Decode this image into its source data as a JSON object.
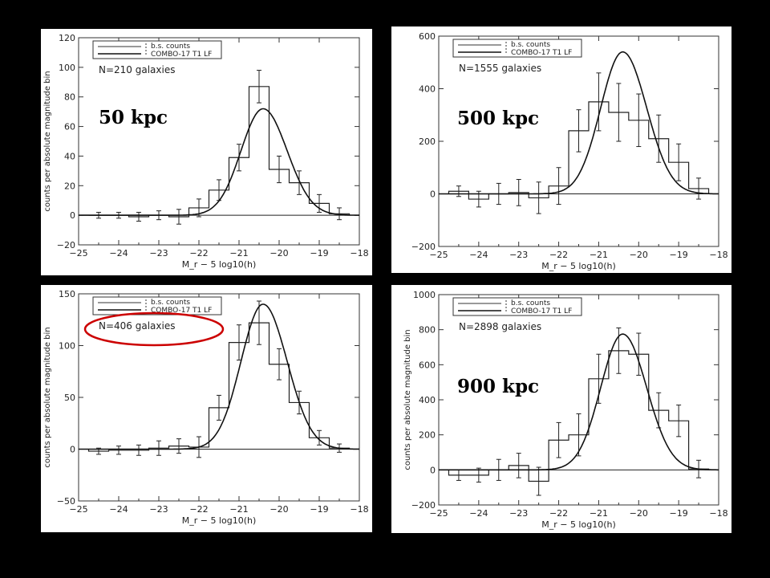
{
  "chart_data": [
    {
      "type": "line",
      "panel_label": "50 kpc",
      "count_label": "N=210 galaxies",
      "legend": [
        "b.s. counts",
        "COMBO-17 T1 LF"
      ],
      "xlabel": "M_r − 5 log10(h)",
      "ylabel": "counts per absolute magnitude bin",
      "xlim": [
        -25,
        -18
      ],
      "ylim": [
        -20,
        120
      ],
      "xticks": [
        -25,
        -24,
        -23,
        -22,
        -21,
        -20,
        -19,
        -18
      ],
      "yticks": [
        -20,
        0,
        20,
        40,
        60,
        80,
        100,
        120
      ],
      "highlight": false,
      "series": [
        {
          "name": "b.s. counts",
          "bin_edges": [
            -24.75,
            -24.25,
            -23.75,
            -23.25,
            -22.75,
            -22.25,
            -21.75,
            -21.25,
            -20.75,
            -20.25,
            -19.75,
            -19.25,
            -18.75,
            -18.25
          ],
          "values": [
            0,
            0,
            -1,
            0,
            -1,
            5,
            17,
            39,
            87,
            31,
            22,
            8,
            1
          ],
          "errors": [
            2,
            2,
            3,
            3,
            5,
            6,
            7,
            9,
            11,
            9,
            8,
            6,
            4
          ]
        },
        {
          "name": "COMBO-17 T1 LF",
          "peak_x": -20.4,
          "peak_y": 72,
          "sigma_bright": 0.55,
          "sigma_faint": 0.6
        }
      ]
    },
    {
      "type": "line",
      "panel_label": "500 kpc",
      "count_label": "N=1555 galaxies",
      "legend": [
        "b.s. counts",
        "COMBO-17 T1 LF"
      ],
      "xlabel": "M_r − 5 log10(h)",
      "ylabel": "",
      "xlim": [
        -25,
        -18
      ],
      "ylim": [
        -200,
        600
      ],
      "xticks": [
        -25,
        -24,
        -23,
        -22,
        -21,
        -20,
        -19,
        -18
      ],
      "yticks": [
        -200,
        0,
        200,
        400,
        600
      ],
      "highlight": false,
      "series": [
        {
          "name": "b.s. counts",
          "bin_edges": [
            -24.75,
            -24.25,
            -23.75,
            -23.25,
            -22.75,
            -22.25,
            -21.75,
            -21.25,
            -20.75,
            -20.25,
            -19.75,
            -19.25,
            -18.75,
            -18.25
          ],
          "values": [
            10,
            -20,
            0,
            5,
            -15,
            30,
            240,
            350,
            310,
            280,
            210,
            120,
            20
          ],
          "errors": [
            20,
            30,
            40,
            50,
            60,
            70,
            80,
            110,
            110,
            100,
            90,
            70,
            40
          ]
        },
        {
          "name": "COMBO-17 T1 LF",
          "peak_x": -20.4,
          "peak_y": 540,
          "sigma_bright": 0.55,
          "sigma_faint": 0.6
        }
      ]
    },
    {
      "type": "line",
      "panel_label": "",
      "count_label": "N=406 galaxies",
      "legend": [
        "b.s. counts",
        "COMBO-17 T1 LF"
      ],
      "xlabel": "M_r − 5 log10(h)",
      "ylabel": "counts per absolute magnitude bin",
      "xlim": [
        -25,
        -18
      ],
      "ylim": [
        -50,
        150
      ],
      "xticks": [
        -25,
        -24,
        -23,
        -22,
        -21,
        -20,
        -19,
        -18
      ],
      "yticks": [
        -50,
        0,
        50,
        100,
        150
      ],
      "highlight": true,
      "highlight_color": "#cc0000",
      "series": [
        {
          "name": "b.s. counts",
          "bin_edges": [
            -24.75,
            -24.25,
            -23.75,
            -23.25,
            -22.75,
            -22.25,
            -21.75,
            -21.25,
            -20.75,
            -20.25,
            -19.75,
            -19.25,
            -18.75,
            -18.25
          ],
          "values": [
            -2,
            -1,
            -1,
            1,
            3,
            2,
            40,
            103,
            122,
            82,
            45,
            11,
            1
          ],
          "errors": [
            3,
            4,
            5,
            7,
            7,
            10,
            12,
            17,
            21,
            15,
            11,
            7,
            4
          ]
        },
        {
          "name": "COMBO-17 T1 LF",
          "peak_x": -20.4,
          "peak_y": 140,
          "sigma_bright": 0.55,
          "sigma_faint": 0.6
        }
      ]
    },
    {
      "type": "line",
      "panel_label": "900 kpc",
      "count_label": "N=2898 galaxies",
      "legend": [
        "b.s. counts",
        "COMBO-17 T1 LF"
      ],
      "xlabel": "M_r − 5 log10(h)",
      "ylabel": "counts per absolute magnitude bin",
      "xlim": [
        -25,
        -18
      ],
      "ylim": [
        -200,
        1000
      ],
      "xticks": [
        -25,
        -24,
        -23,
        -22,
        -21,
        -20,
        -19,
        -18
      ],
      "yticks": [
        -200,
        0,
        200,
        400,
        600,
        800,
        1000
      ],
      "highlight": false,
      "series": [
        {
          "name": "b.s. counts",
          "bin_edges": [
            -24.75,
            -24.25,
            -23.75,
            -23.25,
            -22.75,
            -22.25,
            -21.75,
            -21.25,
            -20.75,
            -20.25,
            -19.75,
            -19.25,
            -18.75,
            -18.25
          ],
          "values": [
            -30,
            -30,
            0,
            25,
            -65,
            170,
            200,
            520,
            680,
            660,
            340,
            280,
            5
          ],
          "errors": [
            30,
            40,
            60,
            70,
            80,
            100,
            120,
            140,
            130,
            120,
            100,
            90,
            50
          ]
        },
        {
          "name": "COMBO-17 T1 LF",
          "peak_x": -20.4,
          "peak_y": 775,
          "sigma_bright": 0.55,
          "sigma_faint": 0.6
        }
      ]
    }
  ]
}
